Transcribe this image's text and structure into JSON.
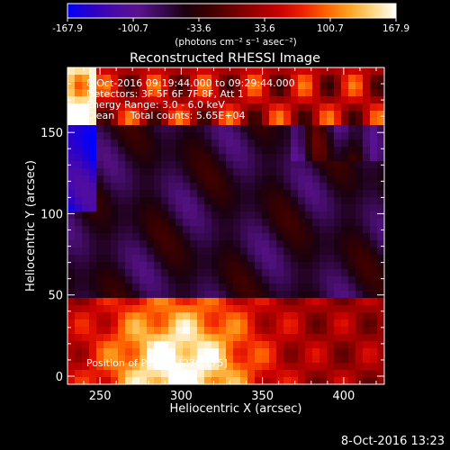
{
  "colors": {
    "colormap": [
      "#0000ff",
      "#2a00c8",
      "#4a0aa8",
      "#5a1290",
      "#3a0a55",
      "#1a0010",
      "#380000",
      "#6a0000",
      "#9a0000",
      "#c80000",
      "#ee2000",
      "#ff6000",
      "#ffa020",
      "#ffd880",
      "#ffffff"
    ],
    "background": "#000000",
    "text": "#ffffff"
  },
  "colorbar": {
    "min": -167.9,
    "max": 167.9,
    "tick_labels": [
      "-167.9",
      "-100.7",
      "-33.6",
      "33.6",
      "100.7",
      "167.9"
    ],
    "unit_label": "(photons cm⁻² s⁻¹ asec⁻²)"
  },
  "chart_data": {
    "type": "heatmap",
    "title": "Reconstructed RHESSI Image",
    "xlabel": "Heliocentric X (arcsec)",
    "ylabel": "Heliocentric Y (arcsec)",
    "xlim": [
      230,
      425
    ],
    "ylim": [
      -5,
      190
    ],
    "x_ticks": [
      250,
      300,
      350,
      400
    ],
    "y_ticks": [
      0,
      50,
      100,
      150
    ],
    "grid": false,
    "annotation_lines": [
      "8-Oct-2016 09:19:44.000 to 09:29:44.000",
      "Detectors: 3F 5F 6F 7F 8F, Att 1",
      "Energy Range: 3.0 - 6.0 keV",
      "Clean     Total counts: 5.65E+04"
    ],
    "peak_label": "Position of Peak = [230,175]",
    "peak_position": [
      230,
      175
    ],
    "value_range": [
      -167.9,
      167.9
    ]
  },
  "footer": {
    "timestamp": "8-Oct-2016 13:23"
  }
}
